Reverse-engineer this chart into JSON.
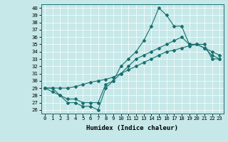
{
  "xlabel": "Humidex (Indice chaleur)",
  "bg_color": "#c6e8e8",
  "line_color": "#1a7070",
  "ylim": [
    25.5,
    40.5
  ],
  "yticks": [
    26,
    27,
    28,
    29,
    30,
    31,
    32,
    33,
    34,
    35,
    36,
    37,
    38,
    39,
    40
  ],
  "xticks": [
    0,
    1,
    2,
    3,
    4,
    5,
    6,
    7,
    8,
    9,
    10,
    11,
    12,
    13,
    14,
    15,
    16,
    17,
    18,
    19,
    20,
    21,
    22,
    23
  ],
  "series_top": [
    29,
    29,
    28,
    27,
    27,
    26.5,
    26.5,
    26,
    29,
    30,
    32,
    33,
    34,
    35.5,
    37.5,
    40,
    39,
    37.5,
    37.5,
    35,
    35,
    35,
    33,
    33
  ],
  "series_mid": [
    29,
    28.5,
    28,
    27.5,
    27.5,
    27,
    27,
    27,
    29.5,
    30,
    31,
    32,
    33,
    33.5,
    34,
    34.5,
    35,
    35.5,
    36,
    35,
    35,
    34.5,
    33.5,
    33
  ],
  "series_bot": [
    29,
    29,
    29,
    29,
    29.2,
    29.5,
    29.8,
    30,
    30.2,
    30.5,
    31,
    31.5,
    32,
    32.5,
    33,
    33.5,
    34,
    34.2,
    34.5,
    34.8,
    35,
    34.5,
    34,
    33.5
  ],
  "xlabel_fontsize": 6.5,
  "tick_fontsize": 5.2,
  "grid_color": "#ffffff",
  "marker": "D",
  "markersize": 2.0,
  "linewidth": 0.8
}
